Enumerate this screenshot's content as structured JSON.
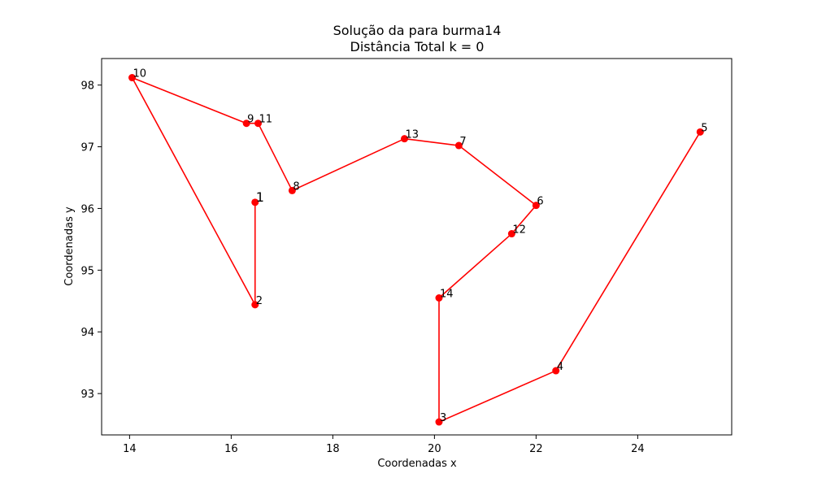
{
  "chart_data": {
    "type": "line",
    "title": "Solução da  para burma14",
    "subtitle": "Distância Total k = 0",
    "xlabel": "Coordenadas x",
    "ylabel": "Coordenadas y",
    "xlim": [
      13.45,
      25.85
    ],
    "ylim": [
      92.33,
      98.43
    ],
    "xticks": [
      14,
      16,
      18,
      20,
      22,
      24
    ],
    "yticks": [
      93,
      94,
      95,
      96,
      97,
      98
    ],
    "grid": false,
    "legend": "none",
    "line_color": "#ff0000",
    "marker_color": "#ff0000",
    "points": [
      {
        "label": "1",
        "x": 16.47,
        "y": 96.1
      },
      {
        "label": "2",
        "x": 16.47,
        "y": 94.44
      },
      {
        "label": "10",
        "x": 14.05,
        "y": 98.12
      },
      {
        "label": "9",
        "x": 16.3,
        "y": 97.38
      },
      {
        "label": "11",
        "x": 16.53,
        "y": 97.38
      },
      {
        "label": "8",
        "x": 17.2,
        "y": 96.29
      },
      {
        "label": "13",
        "x": 19.41,
        "y": 97.13
      },
      {
        "label": "7",
        "x": 20.48,
        "y": 97.02
      },
      {
        "label": "6",
        "x": 22.0,
        "y": 96.05
      },
      {
        "label": "12",
        "x": 21.52,
        "y": 95.59
      },
      {
        "label": "14",
        "x": 20.09,
        "y": 94.55
      },
      {
        "label": "3",
        "x": 20.09,
        "y": 92.54
      },
      {
        "label": "4",
        "x": 22.39,
        "y": 93.37
      },
      {
        "label": "5",
        "x": 25.23,
        "y": 97.24
      }
    ]
  }
}
